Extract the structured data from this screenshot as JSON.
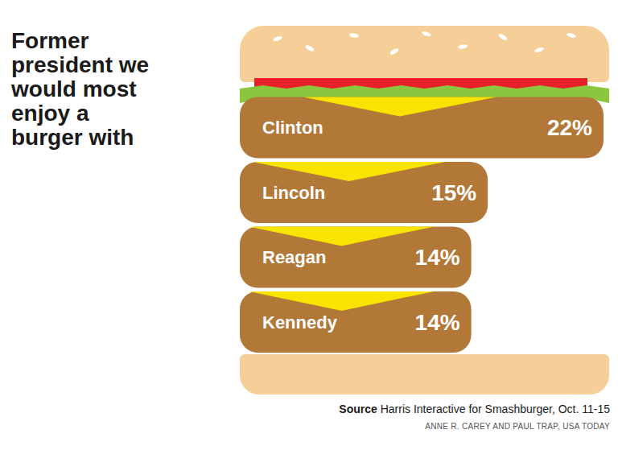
{
  "chart_data": {
    "type": "bar",
    "title": "Former president we would most enjoy a burger with",
    "orientation": "horizontal",
    "categories": [
      "Clinton",
      "Lincoln",
      "Reagan",
      "Kennedy"
    ],
    "values": [
      22,
      15,
      14,
      14
    ],
    "value_labels": [
      "22%",
      "15%",
      "14%",
      "14%"
    ],
    "data_labels": true,
    "tick_labels": false,
    "xlim": [
      0,
      22
    ],
    "color": "#b27838",
    "source_label": "Source",
    "source": "Harris Interactive for Smashburger, Oct. 11-15",
    "credit": "ANNE R. CAREY AND PAUL TRAP, USA TODAY"
  }
}
